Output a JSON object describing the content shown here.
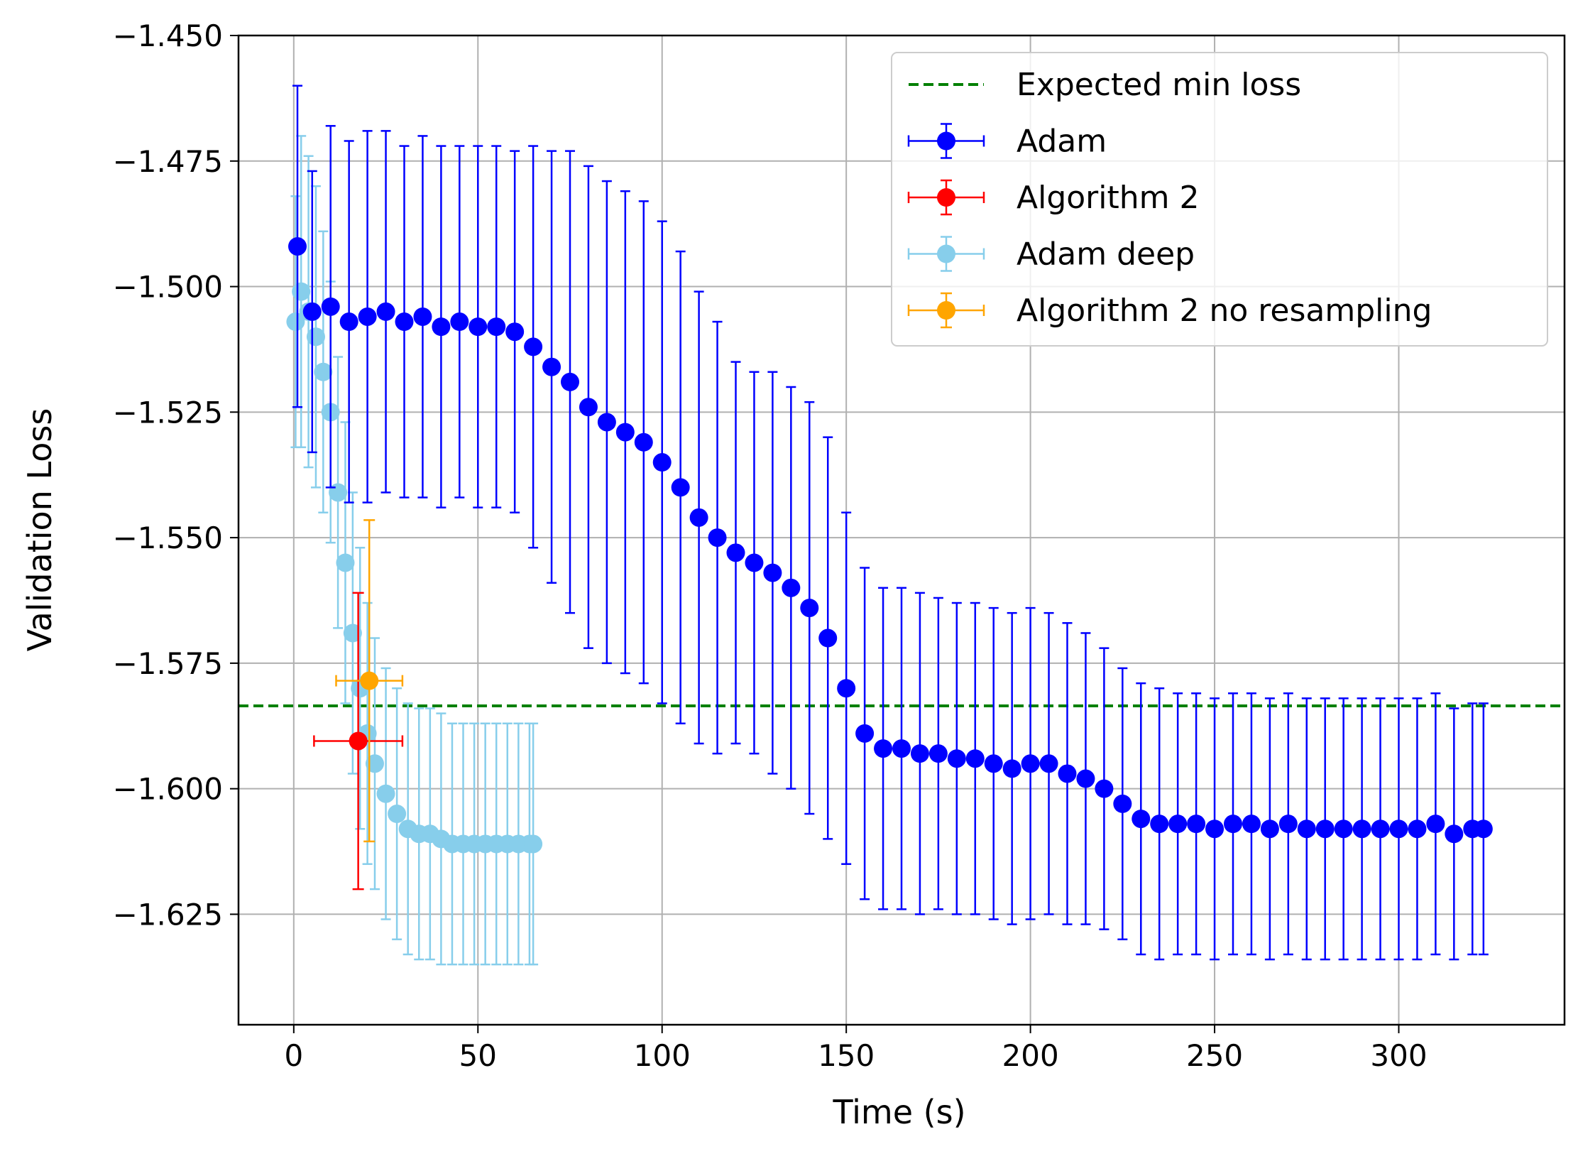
{
  "chart_data": {
    "type": "scatter",
    "xlabel": "Time (s)",
    "ylabel": "Validation Loss",
    "xlim": [
      -15,
      345
    ],
    "ylim": [
      -1.647,
      -1.45
    ],
    "xticks": [
      0,
      50,
      100,
      150,
      200,
      250,
      300
    ],
    "yticks": [
      -1.45,
      -1.475,
      -1.5,
      -1.525,
      -1.55,
      -1.575,
      -1.6,
      -1.625
    ],
    "xtick_labels": [
      "0",
      "50",
      "100",
      "150",
      "200",
      "250",
      "300"
    ],
    "ytick_labels": [
      "−1.450",
      "−1.475",
      "−1.500",
      "−1.525",
      "−1.550",
      "−1.575",
      "−1.600",
      "−1.625"
    ],
    "grid": true,
    "legend_position": "top-right",
    "hline": {
      "name": "Expected min loss",
      "y": -1.5835,
      "color": "#008000",
      "style": "dashed"
    },
    "series": [
      {
        "name": "Adam",
        "color": "#0000ff",
        "type": "errorbar",
        "x": [
          1,
          5,
          10,
          15,
          20,
          25,
          30,
          35,
          40,
          45,
          50,
          55,
          60,
          65,
          70,
          75,
          80,
          85,
          90,
          95,
          100,
          105,
          110,
          115,
          120,
          125,
          130,
          135,
          140,
          145,
          150,
          155,
          160,
          165,
          170,
          175,
          180,
          185,
          190,
          195,
          200,
          205,
          210,
          215,
          220,
          225,
          230,
          235,
          240,
          245,
          250,
          255,
          260,
          265,
          270,
          275,
          280,
          285,
          290,
          295,
          300,
          305,
          310,
          315,
          320,
          323
        ],
        "y": [
          -1.492,
          -1.505,
          -1.504,
          -1.507,
          -1.506,
          -1.505,
          -1.507,
          -1.506,
          -1.508,
          -1.507,
          -1.508,
          -1.508,
          -1.509,
          -1.512,
          -1.516,
          -1.519,
          -1.524,
          -1.527,
          -1.529,
          -1.531,
          -1.535,
          -1.54,
          -1.546,
          -1.55,
          -1.553,
          -1.555,
          -1.557,
          -1.56,
          -1.564,
          -1.57,
          -1.58,
          -1.589,
          -1.592,
          -1.592,
          -1.593,
          -1.593,
          -1.594,
          -1.594,
          -1.595,
          -1.596,
          -1.595,
          -1.595,
          -1.597,
          -1.598,
          -1.6,
          -1.603,
          -1.606,
          -1.607,
          -1.607,
          -1.607,
          -1.608,
          -1.607,
          -1.607,
          -1.608,
          -1.607,
          -1.608,
          -1.608,
          -1.608,
          -1.608,
          -1.608,
          -1.608,
          -1.608,
          -1.607,
          -1.609,
          -1.608,
          -1.608
        ],
        "yerr": [
          0.032,
          0.028,
          0.036,
          0.036,
          0.037,
          0.036,
          0.035,
          0.036,
          0.036,
          0.035,
          0.036,
          0.036,
          0.036,
          0.04,
          0.043,
          0.046,
          0.048,
          0.048,
          0.048,
          0.048,
          0.048,
          0.047,
          0.045,
          0.043,
          0.038,
          0.038,
          0.04,
          0.04,
          0.041,
          0.04,
          0.035,
          0.033,
          0.032,
          0.032,
          0.032,
          0.031,
          0.031,
          0.031,
          0.031,
          0.031,
          0.031,
          0.03,
          0.03,
          0.029,
          0.028,
          0.027,
          0.027,
          0.027,
          0.026,
          0.026,
          0.026,
          0.026,
          0.026,
          0.026,
          0.026,
          0.026,
          0.026,
          0.026,
          0.026,
          0.026,
          0.026,
          0.026,
          0.026,
          0.025,
          0.025,
          0.025
        ]
      },
      {
        "name": "Algorithm 2",
        "color": "#ff0000",
        "type": "errorbar",
        "x": [
          17.5
        ],
        "y": [
          -1.5905
        ],
        "yerr": [
          0.0295
        ],
        "xerr": [
          12
        ]
      },
      {
        "name": "Adam deep",
        "color": "#87ceeb",
        "type": "errorbar",
        "x": [
          0.5,
          2,
          4,
          6,
          8,
          10,
          12,
          14,
          16,
          18,
          20,
          22,
          25,
          28,
          31,
          34,
          37,
          40,
          43,
          46,
          49,
          52,
          55,
          58,
          61,
          64,
          65
        ],
        "y": [
          -1.507,
          -1.501,
          -1.505,
          -1.51,
          -1.517,
          -1.525,
          -1.541,
          -1.555,
          -1.569,
          -1.58,
          -1.589,
          -1.595,
          -1.601,
          -1.605,
          -1.608,
          -1.609,
          -1.609,
          -1.61,
          -1.611,
          -1.611,
          -1.611,
          -1.611,
          -1.611,
          -1.611,
          -1.611,
          -1.611,
          -1.611
        ],
        "yerr": [
          0.025,
          0.031,
          0.031,
          0.03,
          0.028,
          0.026,
          0.027,
          0.028,
          0.028,
          0.028,
          0.026,
          0.025,
          0.025,
          0.025,
          0.025,
          0.025,
          0.025,
          0.025,
          0.024,
          0.024,
          0.024,
          0.024,
          0.024,
          0.024,
          0.024,
          0.024,
          0.024
        ]
      },
      {
        "name": "Algorithm 2 no resampling",
        "color": "#ffa500",
        "type": "errorbar",
        "x": [
          20.5
        ],
        "y": [
          -1.5785
        ],
        "yerr": [
          0.032
        ],
        "xerr": [
          9
        ]
      }
    ]
  }
}
